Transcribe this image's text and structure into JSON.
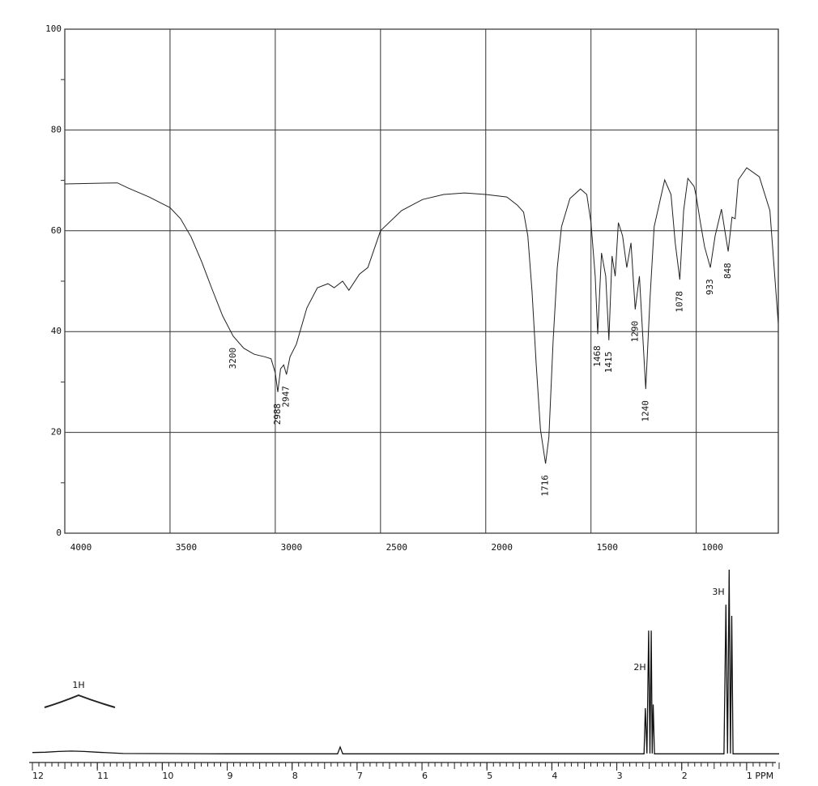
{
  "chart_data": [
    {
      "type": "line",
      "x": [
        4000,
        3750,
        3700,
        3600,
        3500,
        3450,
        3400,
        3350,
        3300,
        3250,
        3200,
        3150,
        3100,
        3050,
        3020,
        3000,
        2988,
        2975,
        2960,
        2947,
        2930,
        2900,
        2850,
        2800,
        2750,
        2720,
        2680,
        2650,
        2600,
        2560,
        2500,
        2400,
        2300,
        2200,
        2100,
        2000,
        1900,
        1850,
        1820,
        1800,
        1780,
        1760,
        1740,
        1716,
        1700,
        1680,
        1660,
        1640,
        1600,
        1550,
        1520,
        1500,
        1480,
        1468,
        1450,
        1430,
        1415,
        1400,
        1385,
        1370,
        1350,
        1330,
        1310,
        1290,
        1270,
        1240,
        1220,
        1200,
        1150,
        1120,
        1100,
        1078,
        1060,
        1040,
        1010,
        1000,
        980,
        960,
        933,
        910,
        880,
        860,
        848,
        830,
        815,
        800,
        760,
        700,
        650,
        610
      ],
      "series": [
        {
          "color": "#222222",
          "values": [
            69.3,
            69.5,
            68.5,
            66.7,
            64.6,
            62.4,
            58.8,
            53.9,
            48.4,
            43.1,
            39.1,
            36.7,
            35.5,
            35,
            34.6,
            31.8,
            28,
            32.6,
            33.4,
            31.5,
            35,
            37.5,
            44.7,
            48.7,
            49.5,
            48.7,
            50,
            48.2,
            51.4,
            52.7,
            60,
            64,
            66.2,
            67.2,
            67.5,
            67.2,
            66.7,
            65.1,
            63.7,
            59,
            48,
            33.4,
            20.6,
            13.8,
            19,
            38,
            52.7,
            60.8,
            66.4,
            68.3,
            67.2,
            61.6,
            51,
            39.5,
            55.6,
            51,
            38.3,
            55,
            51,
            61.6,
            59,
            52.7,
            57.6,
            44.4,
            51,
            28.6,
            46.3,
            60.8,
            70.1,
            67.2,
            57.6,
            50.3,
            64,
            70.4,
            68.8,
            66.9,
            61.6,
            56.8,
            52.7,
            59,
            64.3,
            59,
            55.9,
            62.7,
            62.4,
            70.1,
            72.5,
            70.7,
            64,
            41.5
          ]
        }
      ],
      "xlim": [
        4000,
        610
      ],
      "ylim": [
        0,
        100
      ],
      "xticks": [
        4000,
        3500,
        3000,
        2500,
        2000,
        1500,
        1000
      ],
      "yticks": [
        0,
        20,
        40,
        60,
        80,
        100
      ],
      "grid": true,
      "annotations": [
        {
          "x": 3200
        },
        {
          "x": 2988
        },
        {
          "x": 2947
        },
        {
          "x": 1716
        },
        {
          "x": 1468
        },
        {
          "x": 1415
        },
        {
          "x": 1290
        },
        {
          "x": 1240
        },
        {
          "x": 1078
        },
        {
          "x": 933
        },
        {
          "x": 848
        }
      ]
    },
    {
      "type": "line",
      "x": [
        12,
        11.8,
        11.6,
        11.4,
        11.2,
        11,
        10.6,
        9,
        7.3,
        7.26,
        7.22,
        2.58,
        2.56,
        2.535,
        2.51,
        2.49,
        2.47,
        2.455,
        2.44,
        2.42,
        1.35,
        1.32,
        1.295,
        1.27,
        1.25,
        1.23,
        1.21,
        0.5
      ],
      "series": [
        {
          "color": "#111111",
          "values": [
            1,
            1.2,
            1.6,
            1.8,
            1.6,
            1.2,
            0.5,
            0.3,
            0.3,
            4,
            0.3,
            0.3,
            25,
            0.5,
            67,
            0.5,
            67,
            0.5,
            27,
            0.3,
            0.3,
            81,
            0.5,
            100,
            0.5,
            75,
            0.3,
            0.3
          ]
        }
      ],
      "xlim": [
        12,
        0.5
      ],
      "ylim": [
        0,
        100
      ],
      "xticks": [
        12,
        11,
        10,
        9,
        8,
        7,
        6,
        5,
        4,
        3,
        2,
        {
          "value": 1,
          "label": "1 PPM"
        }
      ],
      "annotations": [
        {
          "text": "1H"
        },
        {
          "text": "2H"
        },
        {
          "text": "3H"
        }
      ]
    }
  ]
}
